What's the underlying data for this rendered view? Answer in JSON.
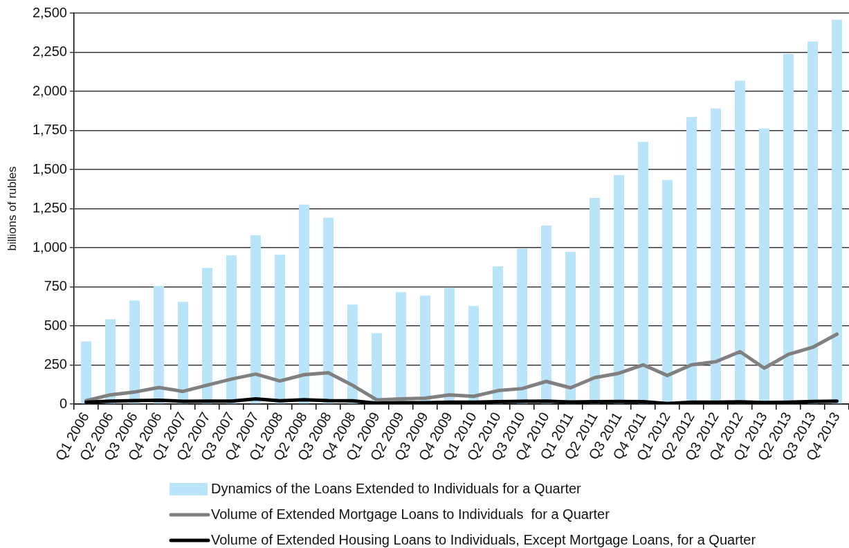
{
  "chart_data": {
    "type": "bar",
    "ylabel": "billions of rubles",
    "categories": [
      "Q1 2006",
      "Q2 2006",
      "Q3 2006",
      "Q4 2006",
      "Q1 2007",
      "Q2 2007",
      "Q3 2007",
      "Q4 2007",
      "Q1 2008",
      "Q2 2008",
      "Q3 2008",
      "Q4 2008",
      "Q1 2009",
      "Q2 2009",
      "Q3 2009",
      "Q4 2009",
      "Q1 2010",
      "Q2 2010",
      "Q3 2010",
      "Q4 2010",
      "Q1 2011",
      "Q2 2011",
      "Q3 2011",
      "Q4 2011",
      "Q1 2012",
      "Q2 2012",
      "Q3 2012",
      "Q4 2012",
      "Q1 2013",
      "Q2 2013",
      "Q3 2013",
      "Q4 2013"
    ],
    "series": [
      {
        "name": "Dynamics of the Loans Extended to Individuals for a Quarter",
        "color": "#b9e4f9",
        "values": [
          400,
          543,
          663,
          756,
          654,
          871,
          951,
          1080,
          955,
          1275,
          1191,
          636,
          454,
          716,
          694,
          744,
          627,
          880,
          995,
          1142,
          973,
          1319,
          1465,
          1677,
          1433,
          1836,
          1891,
          2067,
          1762,
          2239,
          2319,
          2458
        ]
      },
      {
        "name": "Volume of Extended Mortgage Loans to Individuals  for a Quarter",
        "type": "line",
        "color": "#808080",
        "values": [
          22,
          59,
          77,
          106,
          81,
          121,
          160,
          192,
          148,
          188,
          200,
          120,
          27,
          33,
          38,
          59,
          50,
          86,
          99,
          145,
          104,
          169,
          197,
          251,
          183,
          251,
          271,
          335,
          230,
          318,
          363,
          447
        ]
      },
      {
        "name": "Volume of Extended Housing Loans to Individuals, Except Mortgage Loans, for a Quarter",
        "type": "line",
        "color": "#000000",
        "values": [
          12,
          19,
          22,
          24,
          18,
          19,
          19,
          33,
          21,
          28,
          22,
          21,
          6,
          9,
          9,
          12,
          12,
          15,
          18,
          19,
          13,
          16,
          17,
          15,
          3,
          12,
          12,
          14,
          10,
          12,
          17,
          19
        ]
      }
    ],
    "ylim": [
      0,
      2500
    ],
    "yticks": [
      0,
      250,
      500,
      750,
      {
        "value": 1000,
        "label": "1,000"
      },
      {
        "value": 1250,
        "label": "1,250"
      },
      {
        "value": 1500,
        "label": "1,500"
      },
      {
        "value": 1750,
        "label": "1,750"
      },
      {
        "value": 2000,
        "label": "2,000"
      },
      {
        "value": 2250,
        "label": "2,250"
      },
      {
        "value": 2500,
        "label": "2,500"
      }
    ],
    "grid": "y",
    "legend": "bottom",
    "marker": "none",
    "line_style": "solid"
  }
}
